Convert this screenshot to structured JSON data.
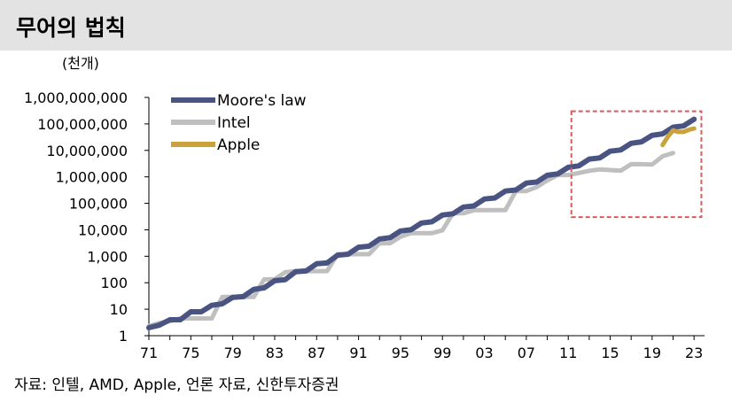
{
  "header": {
    "title": "무어의 법칙"
  },
  "source_note": "자료: 인텔, AMD, Apple, 언론 자료, 신한투자증권",
  "chart_data": {
    "type": "line",
    "unit_label": "(천개)",
    "y_scale": "log",
    "ylim": [
      1,
      1000000000
    ],
    "y_ticks": [
      {
        "value": 1,
        "label": "1"
      },
      {
        "value": 10,
        "label": "10"
      },
      {
        "value": 100,
        "label": "100"
      },
      {
        "value": 1000,
        "label": "1,000"
      },
      {
        "value": 10000,
        "label": "10,000"
      },
      {
        "value": 100000,
        "label": "100,000"
      },
      {
        "value": 1000000,
        "label": "1,000,000"
      },
      {
        "value": 10000000,
        "label": "10,000,000"
      },
      {
        "value": 100000000,
        "label": "100,000,000"
      },
      {
        "value": 1000000000,
        "label": "1,000,000,000"
      }
    ],
    "xlim": [
      1971,
      2024
    ],
    "x_ticks": [
      {
        "value": 1971,
        "label": "71"
      },
      {
        "value": 1975,
        "label": "75"
      },
      {
        "value": 1979,
        "label": "79"
      },
      {
        "value": 1983,
        "label": "83"
      },
      {
        "value": 1987,
        "label": "87"
      },
      {
        "value": 1991,
        "label": "91"
      },
      {
        "value": 1995,
        "label": "95"
      },
      {
        "value": 1999,
        "label": "99"
      },
      {
        "value": 2003,
        "label": "03"
      },
      {
        "value": 2007,
        "label": "07"
      },
      {
        "value": 2011,
        "label": "11"
      },
      {
        "value": 2015,
        "label": "15"
      },
      {
        "value": 2019,
        "label": "19"
      },
      {
        "value": 2023,
        "label": "23"
      }
    ],
    "legend_position": "top",
    "highlight_box": {
      "x_range": [
        2011.3,
        2023.7
      ],
      "y_range": [
        30000,
        300000000
      ],
      "color": "#e05a5a"
    },
    "series": [
      {
        "name": "Moore's law",
        "color": "#4a5482",
        "x": [
          1971,
          1972,
          1973,
          1974,
          1975,
          1976,
          1977,
          1978,
          1979,
          1980,
          1981,
          1982,
          1983,
          1984,
          1985,
          1986,
          1987,
          1988,
          1989,
          1990,
          1991,
          1992,
          1993,
          1994,
          1995,
          1996,
          1997,
          1998,
          1999,
          2000,
          2001,
          2002,
          2003,
          2004,
          2005,
          2006,
          2007,
          2008,
          2009,
          2010,
          2011,
          2012,
          2013,
          2014,
          2015,
          2016,
          2017,
          2018,
          2019,
          2020,
          2021,
          2022,
          2023
        ],
        "y": [
          2,
          2.5,
          4,
          4,
          8,
          8,
          14,
          16,
          28,
          30,
          56,
          64,
          120,
          130,
          260,
          280,
          520,
          560,
          1100,
          1200,
          2200,
          2400,
          4500,
          5000,
          9000,
          10000,
          18000,
          20000,
          36000,
          40000,
          72000,
          80000,
          145000,
          160000,
          290000,
          320000,
          580000,
          640000,
          1150000,
          1300000,
          2300000,
          2600000,
          4700000,
          5200000,
          9300000,
          10400000,
          18500000,
          21000000,
          37000000,
          42000000,
          75000000,
          84000000,
          150000000
        ]
      },
      {
        "name": "Intel",
        "color": "#bfbfbf",
        "x": [
          1971,
          1972,
          1973,
          1974,
          1975,
          1976,
          1977,
          1978,
          1979,
          1980,
          1981,
          1982,
          1983,
          1984,
          1985,
          1986,
          1987,
          1988,
          1989,
          1990,
          1991,
          1992,
          1993,
          1994,
          1995,
          1996,
          1997,
          1998,
          1999,
          2000,
          2001,
          2002,
          2003,
          2004,
          2005,
          2006,
          2007,
          2008,
          2009,
          2010,
          2011,
          2012,
          2013,
          2014,
          2015,
          2016,
          2017,
          2018,
          2019,
          2020,
          2021
        ],
        "y": [
          2.3,
          3,
          3.5,
          4.5,
          4.5,
          4.5,
          4.5,
          29,
          29,
          29,
          29,
          134,
          134,
          250,
          275,
          275,
          275,
          275,
          1200,
          1200,
          1200,
          1200,
          3100,
          3100,
          5500,
          7500,
          7500,
          7500,
          9500,
          42000,
          42000,
          55000,
          55000,
          55000,
          55000,
          291000,
          291000,
          410000,
          731000,
          1170000,
          1170000,
          1400000,
          1700000,
          1900000,
          1800000,
          1700000,
          3000000,
          3000000,
          2900000,
          6000000,
          8000000
        ]
      },
      {
        "name": "Apple",
        "color": "#c9a23c",
        "x": [
          2020,
          2020.5,
          2021,
          2021.5,
          2022,
          2022.5,
          2023
        ],
        "y": [
          16000000,
          33000000,
          57000000,
          50000000,
          50000000,
          60000000,
          67000000
        ]
      }
    ]
  }
}
